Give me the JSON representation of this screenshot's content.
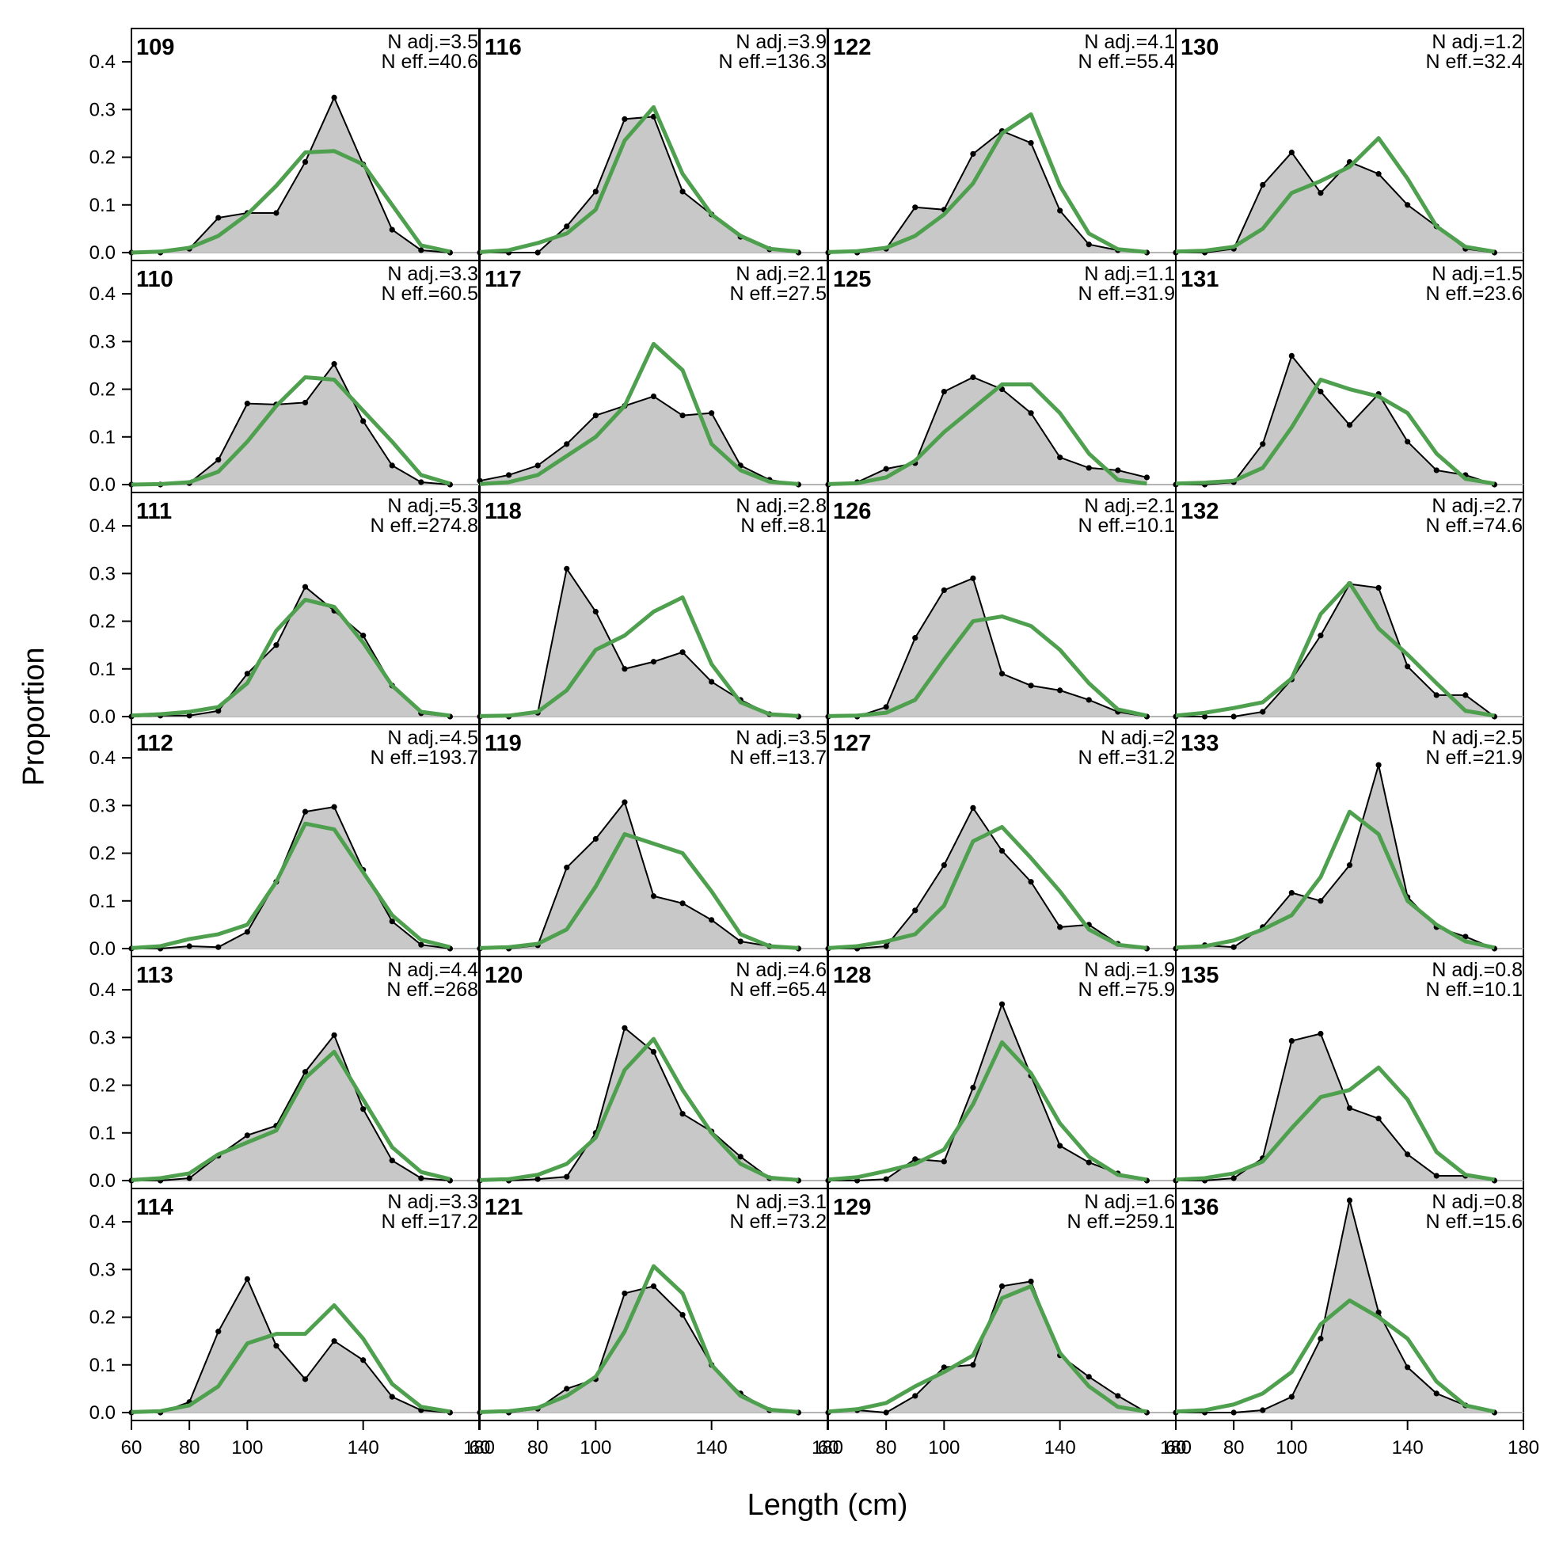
{
  "chart_data": {
    "type": "line",
    "xlabel": "Length (cm)",
    "ylabel": "Proportion",
    "xlim": [
      60,
      180
    ],
    "ylim": [
      0,
      0.45
    ],
    "x_ticks": [
      60,
      80,
      100,
      140,
      180
    ],
    "y_ticks": [
      0.0,
      0.1,
      0.2,
      0.3,
      0.4
    ],
    "y_tick_labels": [
      "0.0",
      "0.1",
      "0.2",
      "0.3",
      "0.4"
    ],
    "layout": {
      "columns": 4,
      "rows": 6
    },
    "observed_color": "#000000",
    "observed_fill": "#c8c8c8",
    "expected_color": "#4ea04e",
    "x": [
      60,
      70,
      80,
      90,
      100,
      110,
      120,
      130,
      140,
      150,
      160,
      170
    ],
    "panels": [
      {
        "label": "109",
        "n_adj": "N adj.=3.5",
        "n_eff": "N eff.=40.6",
        "observed": [
          0.0,
          0.0,
          0.008,
          0.073,
          0.083,
          0.083,
          0.19,
          0.325,
          0.185,
          0.048,
          0.005,
          0.0
        ],
        "expected": [
          0.0,
          0.002,
          0.01,
          0.035,
          0.08,
          0.14,
          0.21,
          0.213,
          0.185,
          0.1,
          0.015,
          0.002
        ]
      },
      {
        "label": "110",
        "n_adj": "N adj.=3.3",
        "n_eff": "N eff.=60.5",
        "observed": [
          0.0,
          0.0,
          0.003,
          0.052,
          0.17,
          0.168,
          0.172,
          0.253,
          0.133,
          0.04,
          0.005,
          0.0
        ],
        "expected": [
          0.0,
          0.001,
          0.005,
          0.027,
          0.09,
          0.165,
          0.225,
          0.22,
          0.155,
          0.09,
          0.02,
          0.002
        ]
      },
      {
        "label": "111",
        "n_adj": "N adj.=5.3",
        "n_eff": "N eff.=274.8",
        "observed": [
          0.0,
          0.002,
          0.002,
          0.012,
          0.09,
          0.15,
          0.272,
          0.222,
          0.17,
          0.065,
          0.007,
          0.0
        ],
        "expected": [
          0.002,
          0.005,
          0.01,
          0.02,
          0.07,
          0.18,
          0.245,
          0.23,
          0.155,
          0.065,
          0.01,
          0.002
        ]
      },
      {
        "label": "112",
        "n_adj": "N adj.=4.5",
        "n_eff": "N eff.=193.7",
        "observed": [
          0.0,
          0.0,
          0.005,
          0.003,
          0.035,
          0.14,
          0.287,
          0.297,
          0.165,
          0.057,
          0.008,
          0.0
        ],
        "expected": [
          0.001,
          0.005,
          0.02,
          0.03,
          0.05,
          0.14,
          0.262,
          0.25,
          0.16,
          0.07,
          0.018,
          0.003
        ]
      },
      {
        "label": "113",
        "n_adj": "N adj.=4.4",
        "n_eff": "N eff.=268",
        "observed": [
          0.0,
          0.0,
          0.005,
          0.052,
          0.095,
          0.115,
          0.228,
          0.305,
          0.15,
          0.042,
          0.005,
          0.0
        ],
        "expected": [
          0.001,
          0.005,
          0.015,
          0.055,
          0.08,
          0.105,
          0.215,
          0.27,
          0.17,
          0.07,
          0.018,
          0.003
        ]
      },
      {
        "label": "114",
        "n_adj": "N adj.=3.3",
        "n_eff": "N eff.=17.2",
        "observed": [
          0.0,
          0.0,
          0.022,
          0.17,
          0.28,
          0.14,
          0.07,
          0.15,
          0.11,
          0.033,
          0.005,
          0.0
        ],
        "expected": [
          0.001,
          0.003,
          0.015,
          0.055,
          0.145,
          0.165,
          0.165,
          0.225,
          0.155,
          0.06,
          0.012,
          0.002
        ]
      },
      {
        "label": "116",
        "n_adj": "N adj.=3.9",
        "n_eff": "N eff.=136.3",
        "observed": [
          0.0,
          0.0,
          0.0,
          0.055,
          0.128,
          0.28,
          0.285,
          0.128,
          0.08,
          0.033,
          0.007,
          0.0
        ],
        "expected": [
          0.001,
          0.005,
          0.02,
          0.04,
          0.09,
          0.235,
          0.305,
          0.165,
          0.08,
          0.035,
          0.008,
          0.002
        ]
      },
      {
        "label": "117",
        "n_adj": "N adj.=2.1",
        "n_eff": "N eff.=27.5",
        "observed": [
          0.008,
          0.02,
          0.04,
          0.085,
          0.145,
          0.165,
          0.185,
          0.145,
          0.15,
          0.04,
          0.01,
          0.0
        ],
        "expected": [
          0.001,
          0.005,
          0.02,
          0.06,
          0.1,
          0.165,
          0.295,
          0.24,
          0.085,
          0.03,
          0.006,
          0.001
        ]
      },
      {
        "label": "118",
        "n_adj": "N adj.=2.8",
        "n_eff": "N eff.=8.1",
        "observed": [
          0.0,
          0.0,
          0.008,
          0.31,
          0.22,
          0.1,
          0.115,
          0.135,
          0.073,
          0.035,
          0.005,
          0.0
        ],
        "expected": [
          0.001,
          0.002,
          0.01,
          0.055,
          0.14,
          0.17,
          0.22,
          0.25,
          0.11,
          0.03,
          0.005,
          0.001
        ]
      },
      {
        "label": "119",
        "n_adj": "N adj.=3.5",
        "n_eff": "N eff.=13.7",
        "observed": [
          0.0,
          0.0,
          0.007,
          0.17,
          0.23,
          0.307,
          0.11,
          0.095,
          0.06,
          0.015,
          0.005,
          0.0
        ],
        "expected": [
          0.001,
          0.003,
          0.01,
          0.04,
          0.13,
          0.24,
          0.22,
          0.2,
          0.12,
          0.03,
          0.005,
          0.001
        ]
      },
      {
        "label": "120",
        "n_adj": "N adj.=4.6",
        "n_eff": "N eff.=65.4",
        "observed": [
          0.0,
          0.0,
          0.003,
          0.008,
          0.1,
          0.32,
          0.27,
          0.14,
          0.103,
          0.05,
          0.005,
          0.0
        ],
        "expected": [
          0.001,
          0.003,
          0.012,
          0.035,
          0.09,
          0.232,
          0.297,
          0.19,
          0.1,
          0.035,
          0.006,
          0.001
        ]
      },
      {
        "label": "121",
        "n_adj": "N adj.=3.1",
        "n_eff": "N eff.=73.2",
        "observed": [
          0.0,
          0.0,
          0.008,
          0.05,
          0.07,
          0.25,
          0.265,
          0.205,
          0.1,
          0.04,
          0.005,
          0.0
        ],
        "expected": [
          0.001,
          0.003,
          0.01,
          0.035,
          0.075,
          0.17,
          0.307,
          0.25,
          0.1,
          0.035,
          0.006,
          0.001
        ]
      },
      {
        "label": "122",
        "n_adj": "N adj.=4.1",
        "n_eff": "N eff.=55.4",
        "observed": [
          0.0,
          0.0,
          0.008,
          0.095,
          0.09,
          0.207,
          0.255,
          0.23,
          0.088,
          0.017,
          0.005,
          0.0
        ],
        "expected": [
          0.001,
          0.003,
          0.01,
          0.035,
          0.08,
          0.145,
          0.25,
          0.29,
          0.14,
          0.04,
          0.007,
          0.001
        ]
      },
      {
        "label": "125",
        "n_adj": "N adj.=1.1",
        "n_eff": "N eff.=31.9",
        "observed": [
          0.0,
          0.005,
          0.033,
          0.045,
          0.195,
          0.225,
          0.2,
          0.15,
          0.057,
          0.035,
          0.03,
          0.015
        ],
        "expected": [
          0.001,
          0.003,
          0.015,
          0.05,
          0.11,
          0.16,
          0.21,
          0.21,
          0.15,
          0.065,
          0.01,
          0.002
        ]
      },
      {
        "label": "126",
        "n_adj": "N adj.=2.1",
        "n_eff": "N eff.=10.1",
        "observed": [
          0.0,
          0.0,
          0.02,
          0.165,
          0.265,
          0.29,
          0.09,
          0.065,
          0.055,
          0.035,
          0.01,
          0.0
        ],
        "expected": [
          0.001,
          0.002,
          0.008,
          0.035,
          0.12,
          0.2,
          0.21,
          0.19,
          0.14,
          0.07,
          0.015,
          0.002
        ]
      },
      {
        "label": "127",
        "n_adj": "N adj.=2",
        "n_eff": "N eff.=31.2",
        "observed": [
          0.0,
          0.0,
          0.005,
          0.08,
          0.175,
          0.295,
          0.205,
          0.14,
          0.045,
          0.05,
          0.01,
          0.0
        ],
        "expected": [
          0.001,
          0.005,
          0.015,
          0.03,
          0.09,
          0.225,
          0.255,
          0.19,
          0.12,
          0.04,
          0.008,
          0.001
        ]
      },
      {
        "label": "128",
        "n_adj": "N adj.=1.9",
        "n_eff": "N eff.=75.9",
        "observed": [
          0.0,
          0.0,
          0.003,
          0.045,
          0.04,
          0.195,
          0.37,
          0.22,
          0.073,
          0.038,
          0.015,
          0.0
        ],
        "expected": [
          0.002,
          0.007,
          0.02,
          0.035,
          0.065,
          0.16,
          0.29,
          0.225,
          0.12,
          0.05,
          0.012,
          0.002
        ]
      },
      {
        "label": "129",
        "n_adj": "N adj.=1.6",
        "n_eff": "N eff.=259.1",
        "observed": [
          0.0,
          0.005,
          0.0,
          0.035,
          0.095,
          0.1,
          0.265,
          0.275,
          0.12,
          0.075,
          0.035,
          0.0
        ],
        "expected": [
          0.002,
          0.007,
          0.02,
          0.055,
          0.085,
          0.12,
          0.24,
          0.265,
          0.125,
          0.055,
          0.012,
          0.002
        ]
      },
      {
        "label": "130",
        "n_adj": "N adj.=1.2",
        "n_eff": "N eff.=32.4",
        "observed": [
          0.0,
          0.0,
          0.008,
          0.142,
          0.21,
          0.125,
          0.19,
          0.165,
          0.1,
          0.055,
          0.008,
          0.0
        ],
        "expected": [
          0.002,
          0.004,
          0.012,
          0.05,
          0.125,
          0.15,
          0.18,
          0.24,
          0.155,
          0.055,
          0.012,
          0.002
        ]
      },
      {
        "label": "131",
        "n_adj": "N adj.=1.5",
        "n_eff": "N eff.=23.6",
        "observed": [
          0.0,
          0.0,
          0.005,
          0.085,
          0.27,
          0.195,
          0.125,
          0.19,
          0.09,
          0.03,
          0.02,
          0.0
        ],
        "expected": [
          0.002,
          0.004,
          0.008,
          0.035,
          0.12,
          0.22,
          0.2,
          0.185,
          0.15,
          0.065,
          0.012,
          0.002
        ]
      },
      {
        "label": "132",
        "n_adj": "N adj.=2.7",
        "n_eff": "N eff.=74.6",
        "observed": [
          0.0,
          0.0,
          0.0,
          0.01,
          0.078,
          0.17,
          0.278,
          0.27,
          0.105,
          0.045,
          0.045,
          0.0
        ],
        "expected": [
          0.002,
          0.008,
          0.018,
          0.03,
          0.08,
          0.215,
          0.28,
          0.185,
          0.13,
          0.07,
          0.012,
          0.002
        ]
      },
      {
        "label": "133",
        "n_adj": "N adj.=2.5",
        "n_eff": "N eff.=21.9",
        "observed": [
          0.0,
          0.007,
          0.003,
          0.045,
          0.117,
          0.1,
          0.175,
          0.385,
          0.108,
          0.045,
          0.025,
          0.0
        ],
        "expected": [
          0.002,
          0.005,
          0.017,
          0.04,
          0.07,
          0.15,
          0.287,
          0.24,
          0.1,
          0.05,
          0.015,
          0.002
        ]
      },
      {
        "label": "135",
        "n_adj": "N adj.=0.8",
        "n_eff": "N eff.=10.1",
        "observed": [
          0.0,
          0.0,
          0.005,
          0.047,
          0.293,
          0.308,
          0.152,
          0.13,
          0.055,
          0.01,
          0.01,
          0.0
        ],
        "expected": [
          0.002,
          0.005,
          0.015,
          0.04,
          0.11,
          0.175,
          0.19,
          0.237,
          0.17,
          0.06,
          0.012,
          0.002
        ]
      },
      {
        "label": "136",
        "n_adj": "N adj.=0.8",
        "n_eff": "N eff.=15.6",
        "observed": [
          0.0,
          0.0,
          0.0,
          0.005,
          0.033,
          0.155,
          0.445,
          0.21,
          0.095,
          0.04,
          0.015,
          0.0
        ],
        "expected": [
          0.002,
          0.005,
          0.017,
          0.04,
          0.085,
          0.185,
          0.235,
          0.2,
          0.155,
          0.065,
          0.015,
          0.002
        ]
      }
    ]
  }
}
